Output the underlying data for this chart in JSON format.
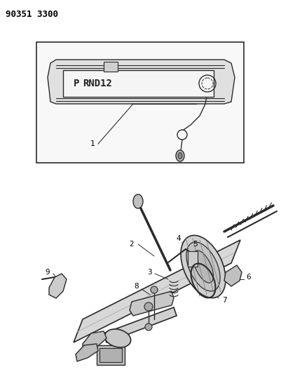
{
  "title_text": "90351 3300",
  "bg_color": "#ffffff",
  "fig_width": 4.01,
  "fig_height": 5.33,
  "dpi": 100,
  "line_color": "#2a2a2a"
}
